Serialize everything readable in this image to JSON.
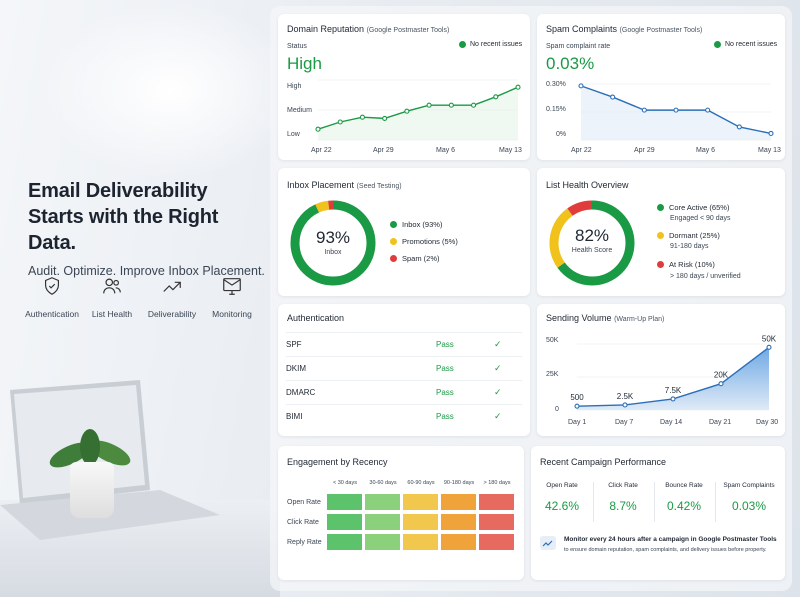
{
  "hero": {
    "title_line1": "Email Deliverability",
    "title_line2": "Starts with the Right Data.",
    "subtitle": "Audit. Optimize. Improve Inbox Placement."
  },
  "features": [
    {
      "icon": "shield-check-icon",
      "label": "Authentication"
    },
    {
      "icon": "users-icon",
      "label": "List Health"
    },
    {
      "icon": "trend-up-icon",
      "label": "Deliverability"
    },
    {
      "icon": "monitor-mail-icon",
      "label": "Monitoring"
    }
  ],
  "domain_reputation": {
    "title": "Domain Reputation",
    "source": "(Google Postmaster Tools)",
    "status_label": "Status",
    "status_value": "High",
    "badge": "No recent issues",
    "y_labels": [
      "High",
      "Medium",
      "Low"
    ],
    "x_labels": [
      "Apr 22",
      "Apr 29",
      "May 6",
      "May 13"
    ],
    "values": [
      0.18,
      0.3,
      0.38,
      0.36,
      0.48,
      0.58,
      0.58,
      0.58,
      0.72,
      0.88
    ]
  },
  "spam_complaints": {
    "title": "Spam Complaints",
    "source": "(Google Postmaster Tools)",
    "status_label": "Spam complaint rate",
    "status_value": "0.03%",
    "badge": "No recent issues",
    "y_labels": [
      "0.30%",
      "0.15%",
      "0%"
    ],
    "x_labels": [
      "Apr 22",
      "Apr 29",
      "May 6",
      "May 13"
    ],
    "values": [
      0.29,
      0.23,
      0.16,
      0.16,
      0.16,
      0.07,
      0.035
    ]
  },
  "inbox_placement": {
    "title": "Inbox Placement",
    "source": "(Seed Testing)",
    "center_value": "93%",
    "center_label": "Inbox",
    "legend": [
      {
        "label": "Inbox (93%)",
        "color": "#1a9a45"
      },
      {
        "label": "Promotions (5%)",
        "color": "#f1c21b"
      },
      {
        "label": "Spam (2%)",
        "color": "#e03c3c"
      }
    ],
    "segments": [
      93,
      5,
      2
    ]
  },
  "list_health": {
    "title": "List Health Overview",
    "center_value": "82%",
    "center_label": "Health Score",
    "legend": [
      {
        "label": "Core Active (65%)",
        "sub": "Engaged < 90 days",
        "color": "#1a9a45"
      },
      {
        "label": "Dormant (25%)",
        "sub": "91-180 days",
        "color": "#f1c21b"
      },
      {
        "label": "At Risk (10%)",
        "sub": "> 180 days / unverified",
        "color": "#e03c3c"
      }
    ],
    "segments": [
      65,
      25,
      10
    ]
  },
  "authentication": {
    "title": "Authentication",
    "rows": [
      {
        "name": "SPF",
        "status": "Pass"
      },
      {
        "name": "DKIM",
        "status": "Pass"
      },
      {
        "name": "DMARC",
        "status": "Pass"
      },
      {
        "name": "BIMI",
        "status": "Pass"
      }
    ],
    "check": "✓"
  },
  "sending_volume": {
    "title": "Sending Volume",
    "subtitle": "(Warm-Up Plan)",
    "y_labels": [
      "50K",
      "25K",
      "0"
    ],
    "x_labels": [
      "Day 1",
      "Day 7",
      "Day 14",
      "Day 21",
      "Day 30"
    ],
    "point_labels": [
      "500",
      "2.5K",
      "7.5K",
      "20K",
      "50K"
    ],
    "values": [
      500,
      2500,
      7500,
      20000,
      50000
    ]
  },
  "engagement": {
    "title": "Engagement by Recency",
    "columns": [
      "< 30 days",
      "30-60 days",
      "60-90 days",
      "90-180 days",
      "> 180 days"
    ],
    "rows": [
      {
        "label": "Open Rate",
        "colors": [
          "#5cc26b",
          "#8bd07a",
          "#f1c84d",
          "#f0a33a",
          "#e66a5f"
        ]
      },
      {
        "label": "Click Rate",
        "colors": [
          "#5cc26b",
          "#8bd07a",
          "#f1c84d",
          "#f0a33a",
          "#e66a5f"
        ]
      },
      {
        "label": "Reply Rate",
        "colors": [
          "#5cc26b",
          "#8bd07a",
          "#f1c84d",
          "#f0a33a",
          "#e66a5f"
        ]
      }
    ]
  },
  "campaign": {
    "title": "Recent Campaign Performance",
    "metrics": [
      {
        "label": "Open Rate",
        "value": "42.6%"
      },
      {
        "label": "Click Rate",
        "value": "8.7%"
      },
      {
        "label": "Bounce Rate",
        "value": "0.42%"
      },
      {
        "label": "Spam Complaints",
        "value": "0.03%"
      }
    ],
    "note_title": "Monitor every 24 hours after a campaign in Google Postmaster Tools",
    "note_body": "to ensure domain reputation, spam complaints, and delivery issues before property."
  },
  "colors": {
    "green": "#1a9a45",
    "blue": "#2c6fb8",
    "yellow": "#f1c21b",
    "red": "#e03c3c"
  }
}
